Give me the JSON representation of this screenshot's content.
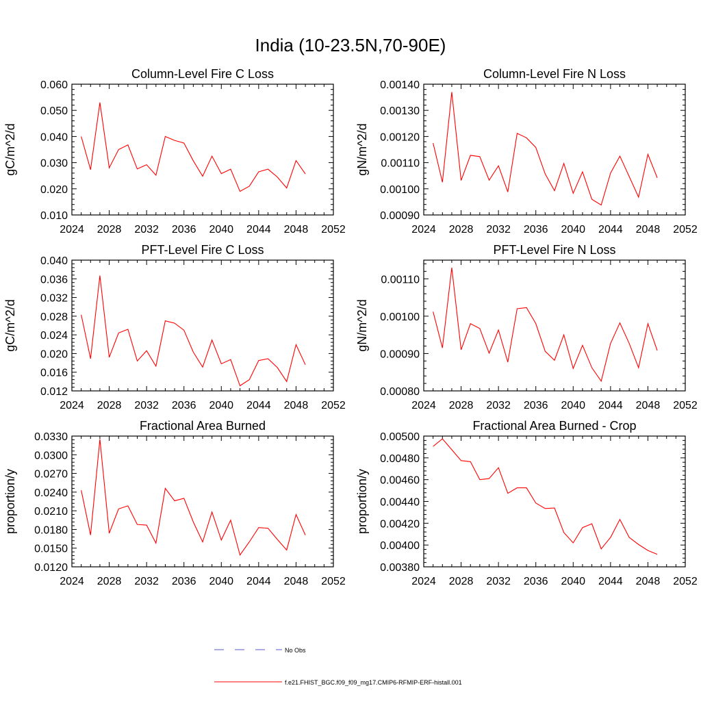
{
  "figure": {
    "title": "India (10-23.5N,70-90E)"
  },
  "colors": {
    "series": "#ff0000",
    "obs": "#5555cc",
    "axis": "#000000"
  },
  "legend": {
    "entries": [
      {
        "label": "No Obs",
        "style": "dashed",
        "color": "#5555cc"
      },
      {
        "label": "f.e21.FHIST_BGC.f09_f09_mg17.CMIP6-RFMIP-ERF-histall.001",
        "style": "solid",
        "color": "#ff0000"
      }
    ]
  },
  "chart_data": [
    {
      "type": "line",
      "title": "Column-Level Fire C Loss",
      "ylabel": "gC/m^2/d",
      "xlabel": "",
      "xlim": [
        2024,
        2052
      ],
      "xticks": [
        2024,
        2028,
        2032,
        2036,
        2040,
        2044,
        2048,
        2052
      ],
      "xtick_labels": [
        "2024",
        "2028",
        "2032",
        "2036",
        "2040",
        "2044",
        "2048",
        "2052"
      ],
      "ylim": [
        0.01,
        0.06
      ],
      "yticks": [
        0.01,
        0.02,
        0.03,
        0.04,
        0.05,
        0.06
      ],
      "ytick_labels": [
        "0.010",
        "0.020",
        "0.030",
        "0.040",
        "0.050",
        "0.060"
      ],
      "x": [
        2025,
        2026,
        2027,
        2028,
        2029,
        2030,
        2031,
        2032,
        2033,
        2034,
        2035,
        2036,
        2037,
        2038,
        2039,
        2040,
        2041,
        2042,
        2043,
        2044,
        2045,
        2046,
        2047,
        2048,
        2049
      ],
      "series": [
        {
          "name": "f.e21.FHIST_BGC.f09_f09_mg17.CMIP6-RFMIP-ERF-histall.001",
          "values": [
            0.04,
            0.0273,
            0.053,
            0.028,
            0.035,
            0.0368,
            0.0276,
            0.0292,
            0.0252,
            0.04,
            0.0385,
            0.0375,
            0.0307,
            0.0248,
            0.0325,
            0.0258,
            0.0275,
            0.019,
            0.021,
            0.0265,
            0.0275,
            0.0245,
            0.0203,
            0.0308,
            0.0257
          ]
        }
      ]
    },
    {
      "type": "line",
      "title": "Column-Level Fire N Loss",
      "ylabel": "gN/m^2/d",
      "xlabel": "",
      "xlim": [
        2024,
        2052
      ],
      "xticks": [
        2024,
        2028,
        2032,
        2036,
        2040,
        2044,
        2048,
        2052
      ],
      "xtick_labels": [
        "2024",
        "2028",
        "2032",
        "2036",
        "2040",
        "2044",
        "2048",
        "2052"
      ],
      "ylim": [
        0.0009,
        0.0014
      ],
      "yticks": [
        0.0009,
        0.001,
        0.0011,
        0.0012,
        0.0013,
        0.0014
      ],
      "ytick_labels": [
        "0.00090",
        "0.00100",
        "0.00110",
        "0.00120",
        "0.00130",
        "0.00140"
      ],
      "x": [
        2025,
        2026,
        2027,
        2028,
        2029,
        2030,
        2031,
        2032,
        2033,
        2034,
        2035,
        2036,
        2037,
        2038,
        2039,
        2040,
        2041,
        2042,
        2043,
        2044,
        2045,
        2046,
        2047,
        2048,
        2049
      ],
      "series": [
        {
          "name": "f.e21.FHIST_BGC.f09_f09_mg17.CMIP6-RFMIP-ERF-histall.001",
          "values": [
            0.001175,
            0.001025,
            0.00137,
            0.001032,
            0.001128,
            0.001123,
            0.001033,
            0.001088,
            0.000988,
            0.001212,
            0.001195,
            0.001158,
            0.001057,
            0.000993,
            0.001097,
            0.000983,
            0.001065,
            0.00096,
            0.000938,
            0.00106,
            0.001125,
            0.001047,
            0.000968,
            0.001132,
            0.001042
          ]
        }
      ]
    },
    {
      "type": "line",
      "title": "PFT-Level Fire C Loss",
      "ylabel": "gC/m^2/d",
      "xlabel": "",
      "xlim": [
        2024,
        2052
      ],
      "xticks": [
        2024,
        2028,
        2032,
        2036,
        2040,
        2044,
        2048,
        2052
      ],
      "xtick_labels": [
        "2024",
        "2028",
        "2032",
        "2036",
        "2040",
        "2044",
        "2048",
        "2052"
      ],
      "ylim": [
        0.012,
        0.04
      ],
      "yticks": [
        0.012,
        0.016,
        0.02,
        0.024,
        0.028,
        0.032,
        0.036,
        0.04
      ],
      "ytick_labels": [
        "0.012",
        "0.016",
        "0.020",
        "0.024",
        "0.028",
        "0.032",
        "0.036",
        "0.040"
      ],
      "x": [
        2025,
        2026,
        2027,
        2028,
        2029,
        2030,
        2031,
        2032,
        2033,
        2034,
        2035,
        2036,
        2037,
        2038,
        2039,
        2040,
        2041,
        2042,
        2043,
        2044,
        2045,
        2046,
        2047,
        2048,
        2049
      ],
      "series": [
        {
          "name": "f.e21.FHIST_BGC.f09_f09_mg17.CMIP6-RFMIP-ERF-histall.001",
          "values": [
            0.0283,
            0.0189,
            0.0367,
            0.0192,
            0.0244,
            0.0252,
            0.0184,
            0.0206,
            0.0173,
            0.027,
            0.0265,
            0.025,
            0.0203,
            0.0171,
            0.0229,
            0.0178,
            0.0187,
            0.0131,
            0.0144,
            0.0185,
            0.0189,
            0.017,
            0.014,
            0.0219,
            0.0176
          ]
        }
      ]
    },
    {
      "type": "line",
      "title": "PFT-Level Fire N Loss",
      "ylabel": "gN/m^2/d",
      "xlabel": "",
      "xlim": [
        2024,
        2052
      ],
      "xticks": [
        2024,
        2028,
        2032,
        2036,
        2040,
        2044,
        2048,
        2052
      ],
      "xtick_labels": [
        "2024",
        "2028",
        "2032",
        "2036",
        "2040",
        "2044",
        "2048",
        "2052"
      ],
      "ylim": [
        0.0008,
        0.00115
      ],
      "yticks": [
        0.0008,
        0.0009,
        0.001,
        0.0011
      ],
      "ytick_labels": [
        "0.00080",
        "0.00090",
        "0.00100",
        "0.00110"
      ],
      "x": [
        2025,
        2026,
        2027,
        2028,
        2029,
        2030,
        2031,
        2032,
        2033,
        2034,
        2035,
        2036,
        2037,
        2038,
        2039,
        2040,
        2041,
        2042,
        2043,
        2044,
        2045,
        2046,
        2047,
        2048,
        2049
      ],
      "series": [
        {
          "name": "f.e21.FHIST_BGC.f09_f09_mg17.CMIP6-RFMIP-ERF-histall.001",
          "values": [
            0.001012,
            0.000915,
            0.00113,
            0.00091,
            0.00098,
            0.000967,
            0.000901,
            0.000963,
            0.000877,
            0.00102,
            0.001023,
            0.00098,
            0.000906,
            0.000882,
            0.00095,
            0.00086,
            0.000922,
            0.000862,
            0.000826,
            0.000927,
            0.000982,
            0.000927,
            0.000862,
            0.00098,
            0.000908
          ]
        }
      ]
    },
    {
      "type": "line",
      "title": "Fractional Area Burned",
      "ylabel": "proportion/y",
      "xlabel": "",
      "xlim": [
        2024,
        2052
      ],
      "xticks": [
        2024,
        2028,
        2032,
        2036,
        2040,
        2044,
        2048,
        2052
      ],
      "xtick_labels": [
        "2024",
        "2028",
        "2032",
        "2036",
        "2040",
        "2044",
        "2048",
        "2052"
      ],
      "ylim": [
        0.012,
        0.033
      ],
      "yticks": [
        0.012,
        0.015,
        0.018,
        0.021,
        0.024,
        0.027,
        0.03,
        0.033
      ],
      "ytick_labels": [
        "0.0120",
        "0.0150",
        "0.0180",
        "0.0210",
        "0.0240",
        "0.0270",
        "0.0300",
        "0.0330"
      ],
      "x": [
        2025,
        2026,
        2027,
        2028,
        2029,
        2030,
        2031,
        2032,
        2033,
        2034,
        2035,
        2036,
        2037,
        2038,
        2039,
        2040,
        2041,
        2042,
        2043,
        2044,
        2045,
        2046,
        2047,
        2048,
        2049
      ],
      "series": [
        {
          "name": "f.e21.FHIST_BGC.f09_f09_mg17.CMIP6-RFMIP-ERF-histall.001",
          "values": [
            0.0243,
            0.0171,
            0.0325,
            0.0174,
            0.0213,
            0.0218,
            0.0188,
            0.0187,
            0.0158,
            0.0246,
            0.0226,
            0.023,
            0.0192,
            0.016,
            0.0208,
            0.0163,
            0.0195,
            0.0139,
            0.016,
            0.0183,
            0.0182,
            0.0164,
            0.0147,
            0.0204,
            0.0171
          ]
        }
      ]
    },
    {
      "type": "line",
      "title": "Fractional Area Burned - Crop",
      "ylabel": "proportion/y",
      "xlabel": "",
      "xlim": [
        2024,
        2052
      ],
      "xticks": [
        2024,
        2028,
        2032,
        2036,
        2040,
        2044,
        2048,
        2052
      ],
      "xtick_labels": [
        "2024",
        "2028",
        "2032",
        "2036",
        "2040",
        "2044",
        "2048",
        "2052"
      ],
      "ylim": [
        0.0038,
        0.005
      ],
      "yticks": [
        0.0038,
        0.004,
        0.0042,
        0.0044,
        0.0046,
        0.0048,
        0.005
      ],
      "ytick_labels": [
        "0.00380",
        "0.00400",
        "0.00420",
        "0.00440",
        "0.00460",
        "0.00480",
        "0.00500"
      ],
      "x": [
        2025,
        2026,
        2027,
        2028,
        2029,
        2030,
        2031,
        2032,
        2033,
        2034,
        2035,
        2036,
        2037,
        2038,
        2039,
        2040,
        2041,
        2042,
        2043,
        2044,
        2045,
        2046,
        2047,
        2048,
        2049
      ],
      "series": [
        {
          "name": "f.e21.FHIST_BGC.f09_f09_mg17.CMIP6-RFMIP-ERF-histall.001",
          "values": [
            0.004905,
            0.004975,
            0.004875,
            0.004775,
            0.004765,
            0.0046,
            0.00461,
            0.00471,
            0.004475,
            0.004525,
            0.004525,
            0.004385,
            0.004335,
            0.00434,
            0.004115,
            0.00402,
            0.00416,
            0.004195,
            0.003965,
            0.00407,
            0.004235,
            0.00407,
            0.004005,
            0.00395,
            0.003915
          ]
        }
      ]
    }
  ]
}
